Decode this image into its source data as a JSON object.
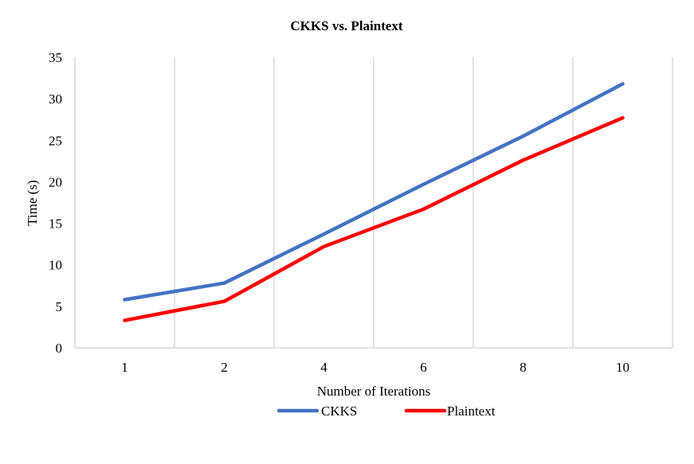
{
  "chart_data": {
    "type": "line",
    "title": "CKKS vs. Plaintext",
    "xlabel": "Number of Iterations",
    "ylabel": "Time (s)",
    "categories": [
      "1",
      "2",
      "4",
      "6",
      "8",
      "10"
    ],
    "series": [
      {
        "name": "CKKS",
        "color": "#4472C4",
        "values": [
          5.8,
          7.8,
          13.7,
          19.7,
          25.5,
          31.8
        ]
      },
      {
        "name": "Plaintext",
        "color": "#FF0000",
        "values": [
          3.3,
          5.6,
          12.2,
          16.7,
          22.6,
          27.7
        ]
      }
    ],
    "ylim": [
      0,
      35
    ],
    "yticks": [
      0,
      5,
      10,
      15,
      20,
      25,
      30,
      35
    ],
    "grid": "vertical",
    "legend": "bottom"
  }
}
